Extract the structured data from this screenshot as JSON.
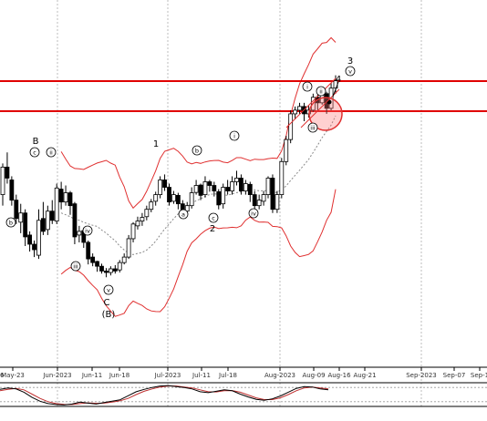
{
  "chart_data": {
    "type": "candlestick",
    "x_ticks": [
      "May-23",
      "Jun-2023",
      "Jun-11",
      "Jun-18",
      "Jul-2023",
      "Jul-11",
      "Jul-18",
      "Aug-2023",
      "Aug-09",
      "Aug-16",
      "Aug-21",
      "Sep-2023",
      "Sep-07",
      "Sep-1"
    ],
    "x_tick_fragment": "6",
    "horizontal_levels": [
      {
        "name": "upper-resistance",
        "color": "#e00000"
      },
      {
        "name": "lower-resistance",
        "color": "#e00000"
      }
    ],
    "bollinger": {
      "upper_color": "#e03030",
      "lower_color": "#e03030",
      "middle_color": "#888888",
      "middle_style": "dotted"
    },
    "candles": [
      [
        0.47,
        0.545,
        0.555,
        0.44
      ],
      [
        0.545,
        0.515,
        0.585,
        0.5
      ],
      [
        0.51,
        0.455,
        0.52,
        0.44
      ],
      [
        0.455,
        0.405,
        0.47,
        0.39
      ],
      [
        0.395,
        0.42,
        0.445,
        0.365
      ],
      [
        0.42,
        0.355,
        0.43,
        0.33
      ],
      [
        0.36,
        0.335,
        0.37,
        0.315
      ],
      [
        0.335,
        0.32,
        0.345,
        0.3
      ],
      [
        0.305,
        0.4,
        0.43,
        0.295
      ],
      [
        0.405,
        0.37,
        0.45,
        0.36
      ],
      [
        0.375,
        0.425,
        0.44,
        0.36
      ],
      [
        0.425,
        0.4,
        0.455,
        0.39
      ],
      [
        0.398,
        0.488,
        0.5,
        0.39
      ],
      [
        0.485,
        0.45,
        0.505,
        0.43
      ],
      [
        0.45,
        0.475,
        0.495,
        0.44
      ],
      [
        0.475,
        0.44,
        0.48,
        0.415
      ],
      [
        0.445,
        0.355,
        0.45,
        0.335
      ],
      [
        0.36,
        0.37,
        0.385,
        0.34
      ],
      [
        0.372,
        0.34,
        0.38,
        0.325
      ],
      [
        0.34,
        0.295,
        0.345,
        0.28
      ],
      [
        0.3,
        0.285,
        0.31,
        0.275
      ],
      [
        0.288,
        0.275,
        0.29,
        0.26
      ],
      [
        0.275,
        0.262,
        0.282,
        0.255
      ],
      [
        0.262,
        0.258,
        0.27,
        0.245
      ],
      [
        0.258,
        0.268,
        0.275,
        0.25
      ],
      [
        0.268,
        0.262,
        0.278,
        0.255
      ],
      [
        0.265,
        0.285,
        0.292,
        0.258
      ],
      [
        0.285,
        0.3,
        0.31,
        0.28
      ],
      [
        0.3,
        0.35,
        0.36,
        0.295
      ],
      [
        0.35,
        0.39,
        0.395,
        0.34
      ],
      [
        0.385,
        0.398,
        0.41,
        0.375
      ],
      [
        0.398,
        0.408,
        0.42,
        0.385
      ],
      [
        0.41,
        0.43,
        0.44,
        0.4
      ],
      [
        0.43,
        0.45,
        0.458,
        0.422
      ],
      [
        0.452,
        0.47,
        0.478,
        0.44
      ],
      [
        0.47,
        0.51,
        0.52,
        0.46
      ],
      [
        0.51,
        0.49,
        0.525,
        0.48
      ],
      [
        0.49,
        0.45,
        0.5,
        0.44
      ],
      [
        0.452,
        0.47,
        0.48,
        0.445
      ],
      [
        0.468,
        0.445,
        0.475,
        0.43
      ],
      [
        0.445,
        0.42,
        0.455,
        0.405
      ],
      [
        0.425,
        0.44,
        0.45,
        0.415
      ],
      [
        0.44,
        0.475,
        0.49,
        0.432
      ],
      [
        0.476,
        0.495,
        0.51,
        0.47
      ],
      [
        0.496,
        0.468,
        0.5,
        0.455
      ],
      [
        0.47,
        0.505,
        0.52,
        0.462
      ],
      [
        0.505,
        0.495,
        0.51,
        0.478
      ],
      [
        0.495,
        0.48,
        0.505,
        0.465
      ],
      [
        0.478,
        0.442,
        0.485,
        0.43
      ],
      [
        0.445,
        0.49,
        0.5,
        0.432
      ],
      [
        0.49,
        0.48,
        0.51,
        0.47
      ],
      [
        0.48,
        0.505,
        0.52,
        0.47
      ],
      [
        0.505,
        0.515,
        0.535,
        0.495
      ],
      [
        0.515,
        0.48,
        0.525,
        0.47
      ],
      [
        0.48,
        0.5,
        0.51,
        0.47
      ],
      [
        0.498,
        0.47,
        0.505,
        0.45
      ],
      [
        0.47,
        0.44,
        0.48,
        0.43
      ],
      [
        0.44,
        0.455,
        0.47,
        0.43
      ],
      [
        0.452,
        0.47,
        0.48,
        0.44
      ],
      [
        0.47,
        0.515,
        0.52,
        0.46
      ],
      [
        0.515,
        0.43,
        0.525,
        0.42
      ],
      [
        0.43,
        0.47,
        0.48,
        0.42
      ],
      [
        0.47,
        0.56,
        0.57,
        0.46
      ],
      [
        0.56,
        0.62,
        0.63,
        0.55
      ],
      [
        0.62,
        0.69,
        0.7,
        0.61
      ],
      [
        0.69,
        0.7,
        0.71,
        0.675
      ],
      [
        0.7,
        0.71,
        0.72,
        0.69
      ],
      [
        0.71,
        0.69,
        0.72,
        0.67
      ],
      [
        0.69,
        0.7,
        0.712,
        0.68
      ],
      [
        0.7,
        0.735,
        0.745,
        0.695
      ],
      [
        0.735,
        0.72,
        0.742,
        0.7
      ],
      [
        0.72,
        0.745,
        0.76,
        0.715
      ],
      [
        0.745,
        0.705,
        0.75,
        0.69
      ],
      [
        0.705,
        0.76,
        0.775,
        0.7
      ],
      [
        0.76,
        0.78,
        0.795,
        0.745
      ]
    ],
    "wave_labels": [
      {
        "text": "B",
        "anchor": "bracket"
      },
      {
        "text": "1",
        "anchor": "bracket"
      },
      {
        "text": "2",
        "anchor": "bracket"
      },
      {
        "text": "3",
        "anchor": "bracket"
      },
      {
        "text": "4",
        "anchor": "bracket"
      },
      {
        "text": "C",
        "anchor": "bracket"
      },
      {
        "text": "(B)",
        "anchor": "bracket"
      },
      {
        "text": "c",
        "anchor": "circled"
      },
      {
        "text": "ii",
        "anchor": "circled"
      },
      {
        "text": "i",
        "anchor": "circled"
      },
      {
        "text": "b",
        "anchor": "circled"
      },
      {
        "text": "iv",
        "anchor": "circled"
      },
      {
        "text": "iii",
        "anchor": "circled"
      },
      {
        "text": "v",
        "anchor": "circled"
      },
      {
        "text": "b",
        "anchor": "circled"
      },
      {
        "text": "a",
        "anchor": "circled"
      },
      {
        "text": "c",
        "anchor": "circled"
      },
      {
        "text": "i",
        "anchor": "circled"
      },
      {
        "text": "ii",
        "anchor": "circled"
      },
      {
        "text": "iii",
        "anchor": "circled"
      },
      {
        "text": "iv",
        "anchor": "circled"
      },
      {
        "text": "v",
        "anchor": "circled"
      }
    ],
    "oscillator": {
      "k": [
        0.72,
        0.78,
        0.74,
        0.6,
        0.38,
        0.22,
        0.12,
        0.08,
        0.06,
        0.1,
        0.18,
        0.14,
        0.1,
        0.16,
        0.22,
        0.28,
        0.45,
        0.62,
        0.72,
        0.8,
        0.86,
        0.88,
        0.84,
        0.8,
        0.74,
        0.62,
        0.58,
        0.64,
        0.7,
        0.66,
        0.52,
        0.4,
        0.3,
        0.26,
        0.32,
        0.44,
        0.6,
        0.76,
        0.84,
        0.82,
        0.74,
        0.7
      ],
      "d": [
        0.66,
        0.72,
        0.76,
        0.7,
        0.52,
        0.34,
        0.2,
        0.12,
        0.09,
        0.08,
        0.12,
        0.15,
        0.13,
        0.14,
        0.18,
        0.24,
        0.34,
        0.5,
        0.64,
        0.74,
        0.82,
        0.86,
        0.86,
        0.82,
        0.78,
        0.7,
        0.62,
        0.61,
        0.66,
        0.67,
        0.6,
        0.48,
        0.36,
        0.29,
        0.29,
        0.36,
        0.5,
        0.66,
        0.78,
        0.82,
        0.78,
        0.74
      ],
      "levels": [
        0.8,
        0.2
      ]
    }
  }
}
